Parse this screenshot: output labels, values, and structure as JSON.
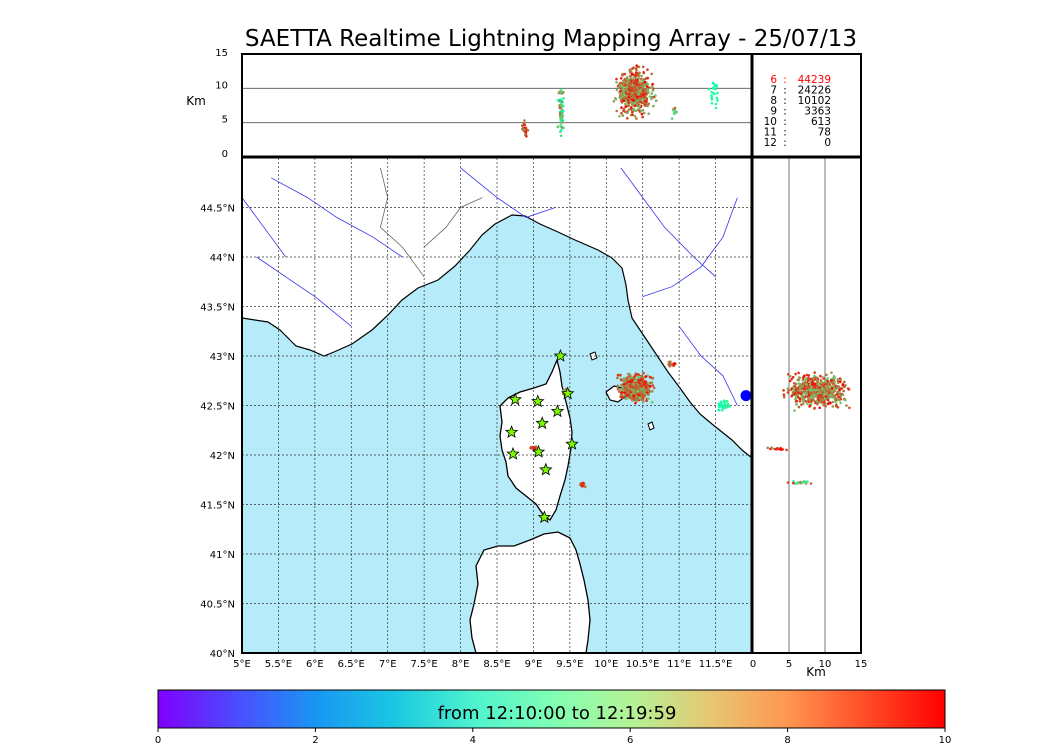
{
  "title": "SAETTA Realtime Lightning Mapping Array - 25/07/13",
  "colors": {
    "sea": "#b6ecfa",
    "land": "#ffffff",
    "coast": "#000000",
    "rivers": "#3333ee",
    "borders": "#666666",
    "grid": "#333333",
    "star_fill": "#7cfc00",
    "station_dot": "#0000ff",
    "highlight_row": "#ff0000"
  },
  "chart_data": [
    {
      "type": "scatter",
      "name": "map",
      "xlabel": "",
      "ylabel": "",
      "xlim": [
        5.0,
        12.0
      ],
      "ylim": [
        40.0,
        45.0
      ],
      "xticks": [
        5.0,
        5.5,
        6.0,
        6.5,
        7.0,
        7.5,
        8.0,
        8.5,
        9.0,
        9.5,
        10.0,
        10.5,
        11.0,
        11.5
      ],
      "xticklabels": [
        "5°E",
        "5.5°E",
        "6°E",
        "6.5°E",
        "7°E",
        "7.5°E",
        "8°E",
        "8.5°E",
        "9°E",
        "9.5°E",
        "10°E",
        "10.5°E",
        "11°E",
        "11.5°E"
      ],
      "yticks": [
        40.0,
        40.5,
        41.0,
        41.5,
        42.0,
        42.5,
        43.0,
        43.5,
        44.0,
        44.5
      ],
      "yticklabels": [
        "40°N",
        "40.5°N",
        "41°N",
        "41.5°N",
        "42°N",
        "42.5°N",
        "43°N",
        "43.5°N",
        "44°N",
        "44.5°N"
      ],
      "grid": true,
      "stations": [
        [
          9.37,
          43.0
        ],
        [
          9.47,
          42.62
        ],
        [
          9.06,
          42.54
        ],
        [
          9.33,
          42.44
        ],
        [
          9.12,
          42.32
        ],
        [
          8.7,
          42.23
        ],
        [
          8.72,
          42.01
        ],
        [
          9.07,
          42.03
        ],
        [
          9.53,
          42.11
        ],
        [
          9.17,
          41.85
        ],
        [
          9.15,
          41.37
        ],
        [
          8.75,
          42.56
        ]
      ],
      "clusters": [
        {
          "lon": 10.4,
          "lat": 42.68,
          "rlon": 0.28,
          "rlat": 0.17,
          "n": 520,
          "color_range": [
            7,
            10
          ]
        },
        {
          "lon": 9.45,
          "lat": 42.64,
          "rlon": 0.05,
          "rlat": 0.04,
          "n": 25,
          "color_range": [
            6,
            9
          ]
        },
        {
          "lon": 9.68,
          "lat": 41.7,
          "rlon": 0.05,
          "rlat": 0.03,
          "n": 15,
          "color_range": [
            8,
            10
          ]
        },
        {
          "lon": 9.0,
          "lat": 42.07,
          "rlon": 0.06,
          "rlat": 0.02,
          "n": 12,
          "color_range": [
            8,
            10
          ]
        },
        {
          "lon": 11.6,
          "lat": 42.5,
          "rlon": 0.12,
          "rlat": 0.06,
          "n": 25,
          "color_range": [
            5,
            6
          ]
        },
        {
          "lon": 10.9,
          "lat": 42.92,
          "rlon": 0.07,
          "rlat": 0.03,
          "n": 12,
          "color_range": [
            8,
            10
          ]
        }
      ],
      "rivers": [
        [
          [
            5.4,
            44.8
          ],
          [
            5.9,
            44.6
          ],
          [
            6.3,
            44.4
          ],
          [
            6.8,
            44.2
          ],
          [
            7.2,
            44.0
          ]
        ],
        [
          [
            5.2,
            44.0
          ],
          [
            5.6,
            43.8
          ],
          [
            6.0,
            43.6
          ],
          [
            6.5,
            43.3
          ]
        ],
        [
          [
            8.0,
            44.9
          ],
          [
            8.5,
            44.6
          ],
          [
            8.9,
            44.4
          ],
          [
            9.3,
            44.5
          ]
        ],
        [
          [
            10.2,
            44.9
          ],
          [
            10.5,
            44.6
          ],
          [
            10.8,
            44.3
          ],
          [
            11.2,
            44.0
          ],
          [
            11.5,
            43.8
          ]
        ],
        [
          [
            11.8,
            44.6
          ],
          [
            11.6,
            44.2
          ],
          [
            11.3,
            43.9
          ],
          [
            10.9,
            43.7
          ],
          [
            10.5,
            43.6
          ]
        ],
        [
          [
            11.0,
            43.3
          ],
          [
            11.3,
            43.0
          ],
          [
            11.6,
            42.8
          ],
          [
            11.8,
            42.5
          ]
        ],
        [
          [
            5.0,
            44.6
          ],
          [
            5.3,
            44.3
          ],
          [
            5.6,
            44.0
          ]
        ]
      ],
      "borders": [
        [
          [
            6.9,
            44.9
          ],
          [
            7.0,
            44.6
          ],
          [
            6.9,
            44.3
          ],
          [
            7.2,
            44.1
          ],
          [
            7.5,
            43.8
          ]
        ],
        [
          [
            7.5,
            44.1
          ],
          [
            7.8,
            44.3
          ],
          [
            8.0,
            44.5
          ],
          [
            8.3,
            44.6
          ]
        ]
      ]
    },
    {
      "type": "scatter",
      "name": "altitude-vs-longitude",
      "ylabel": "Km",
      "xlim": [
        5.0,
        12.0
      ],
      "ylim": [
        0,
        15
      ],
      "yticks": [
        0,
        5,
        10,
        15
      ],
      "yticklabels": [
        "0",
        "5",
        "10",
        "15"
      ],
      "hlines": [
        5,
        10
      ],
      "clusters": [
        {
          "lon": 10.4,
          "alt": 9.5,
          "rlon": 0.33,
          "ralt": 4.5,
          "n": 600,
          "color_range": [
            7,
            10
          ]
        },
        {
          "lon": 9.38,
          "alt": 7.0,
          "rlon": 0.05,
          "ralt": 5.0,
          "n": 70,
          "color_range": [
            5,
            9
          ]
        },
        {
          "lon": 8.88,
          "alt": 4.0,
          "rlon": 0.05,
          "ralt": 1.5,
          "n": 25,
          "color_range": [
            8,
            10
          ]
        },
        {
          "lon": 11.48,
          "alt": 9.0,
          "rlon": 0.08,
          "ralt": 2.5,
          "n": 25,
          "color_range": [
            5,
            6
          ]
        },
        {
          "lon": 10.93,
          "alt": 6.5,
          "rlon": 0.05,
          "ralt": 1.2,
          "n": 15,
          "color_range": [
            6,
            10
          ]
        }
      ]
    },
    {
      "type": "scatter",
      "name": "latitude-vs-altitude",
      "xlabel": "Km",
      "xlim": [
        0,
        15
      ],
      "ylim": [
        40.0,
        45.0
      ],
      "xticks": [
        0,
        5,
        10,
        15
      ],
      "xticklabels": [
        "0",
        "5",
        "10",
        "15"
      ],
      "vlines": [
        5,
        10
      ],
      "clusters": [
        {
          "alt": 9.0,
          "lat": 42.65,
          "ralt": 5.5,
          "rlat": 0.22,
          "n": 600,
          "color_range": [
            7,
            10
          ]
        },
        {
          "alt": 3.5,
          "lat": 42.06,
          "ralt": 2.0,
          "rlat": 0.02,
          "n": 15,
          "color_range": [
            8,
            10
          ]
        },
        {
          "alt": 6.8,
          "lat": 41.72,
          "ralt": 2.5,
          "rlat": 0.02,
          "n": 20,
          "color_range": [
            5,
            10
          ]
        }
      ],
      "station_lat": 42.6
    },
    {
      "type": "table",
      "name": "source-counts",
      "rows": [
        {
          "k": "6",
          "sep": ":",
          "v": "44239",
          "highlight": true
        },
        {
          "k": "7",
          "sep": ":",
          "v": "24226",
          "highlight": false
        },
        {
          "k": "8",
          "sep": ":",
          "v": "10102",
          "highlight": false
        },
        {
          "k": "9",
          "sep": ":",
          "v": "3363",
          "highlight": false
        },
        {
          "k": "10",
          "sep": ":",
          "v": "613",
          "highlight": false
        },
        {
          "k": "11",
          "sep": ":",
          "v": "78",
          "highlight": false
        },
        {
          "k": "12",
          "sep": ":",
          "v": "0",
          "highlight": false
        }
      ]
    },
    {
      "type": "heatmap",
      "name": "colorbar",
      "colormap": "rainbow",
      "range": [
        0,
        10
      ],
      "ticks": [
        0,
        2,
        4,
        6,
        8,
        10
      ],
      "ticklabels": [
        "0",
        "2",
        "4",
        "6",
        "8",
        "10"
      ],
      "label": "from 12:10:00 to 12:19:59"
    }
  ]
}
